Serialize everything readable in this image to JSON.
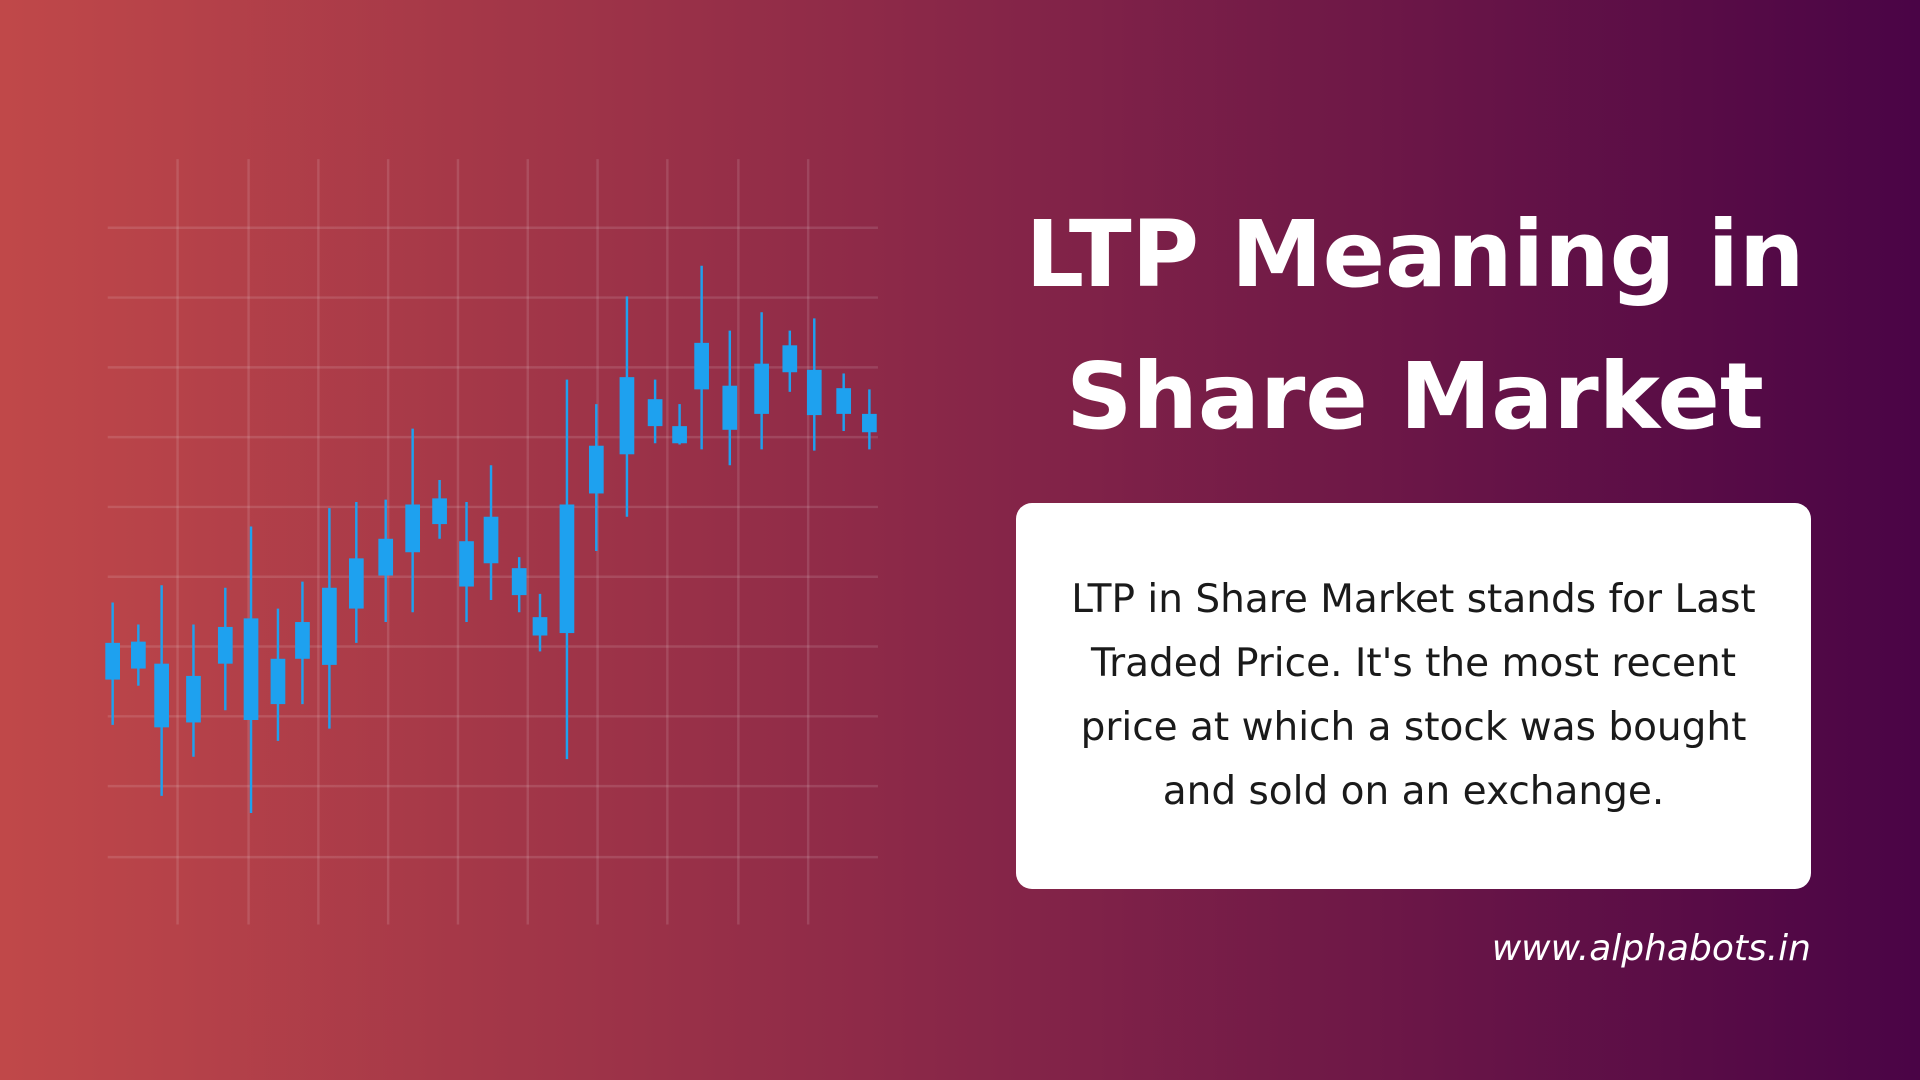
{
  "title": {
    "lines": [
      "LTP Meaning in",
      "Share Market"
    ]
  },
  "description": "LTP in Share Market stands for Last Traded Price. It's the most recent price at which a stock was bought and sold on an exchange.",
  "website": "www.alphabots.in"
}
